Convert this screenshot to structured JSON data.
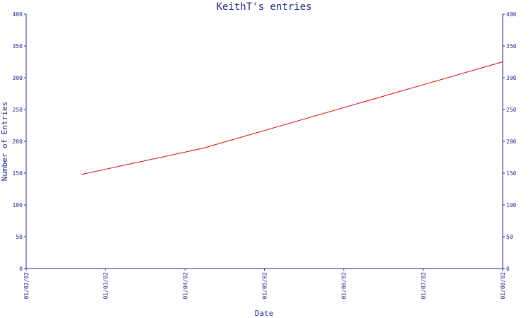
{
  "chart_data": {
    "type": "line",
    "title": "KeithT's entries",
    "xlabel": "Date",
    "ylabel": "Number of Entries",
    "ylim": [
      0,
      400
    ],
    "yticks": [
      0,
      50,
      100,
      150,
      200,
      250,
      300,
      350,
      400
    ],
    "xticks": [
      "01/02/02",
      "01/03/02",
      "01/04/02",
      "01/05/02",
      "01/06/02",
      "01/07/02",
      "01/08/02"
    ],
    "x_range": [
      "2002-02-01",
      "2002-08-01"
    ],
    "grid": false,
    "series": [
      {
        "x": [
          "2002-02-22",
          "2002-04-09",
          "2002-08-01"
        ],
        "y": [
          148,
          189,
          325
        ]
      }
    ],
    "colors": {
      "axis": "#1f2a8a",
      "text": "#1f2a8a",
      "line": "#e00000",
      "background": "#ffffff"
    }
  }
}
